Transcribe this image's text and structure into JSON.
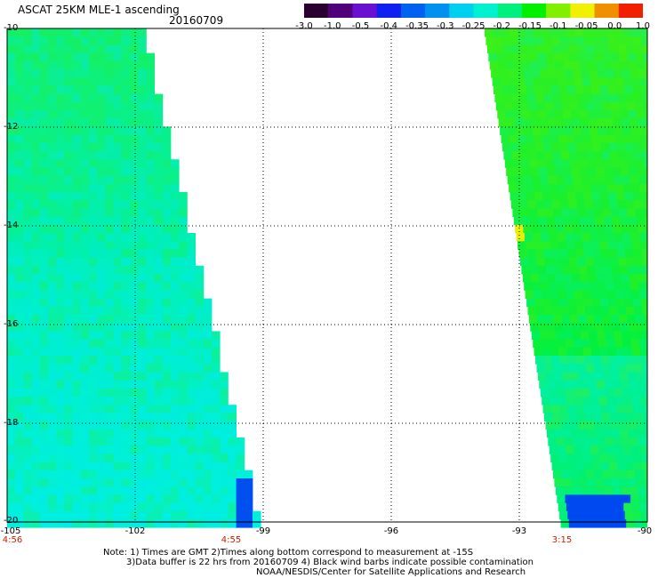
{
  "header": {
    "title": "ASCAT 25KM MLE-1 ascending",
    "date": "20160709"
  },
  "colorbar": {
    "ticks": [
      "-3.0",
      "-1.0",
      "-0.5",
      "-0.4",
      "-0.35",
      "-0.3",
      "-0.25",
      "-0.2",
      "-0.15",
      "-0.1",
      "-0.05",
      "0.0",
      "1.0"
    ],
    "colors": [
      "#2a0030",
      "#50007a",
      "#6a10d0",
      "#1020f0",
      "#0060f0",
      "#0090f0",
      "#00d0f0",
      "#00f0d0",
      "#00f080",
      "#00f000",
      "#80f000",
      "#f0f000",
      "#f09000",
      "#f02000"
    ]
  },
  "map": {
    "lat_ticks": [
      "-10",
      "-12",
      "-14",
      "-16",
      "-18",
      "-20"
    ],
    "lon_ticks": [
      "-105",
      "-102",
      "-99",
      "-96",
      "-93",
      "-90"
    ],
    "lat_range": [
      -20,
      -10
    ],
    "lon_range": [
      -105,
      -90
    ],
    "grid": true,
    "pass_times": [
      {
        "label": "4:56",
        "lon": -105
      },
      {
        "label": "4:55",
        "lon": -99
      },
      {
        "label": "3:15",
        "lon": -92
      }
    ],
    "swaths": [
      {
        "name": "west",
        "dominant_value_range": "-0.3 to -0.15",
        "color": "#00f0a0"
      },
      {
        "name": "east",
        "dominant_value_range": "-0.25 to -0.1",
        "color": "#00f020"
      }
    ]
  },
  "notes": {
    "line1": "Note: 1) Times are GMT 2)Times along bottom correspond to measurement at -15S",
    "line2": "3)Data buffer is 22 hrs from 20160709 4) Black wind barbs indicate possible contamination",
    "line3": "NOAA/NESDIS/Center for Satellite Applications and Research"
  }
}
